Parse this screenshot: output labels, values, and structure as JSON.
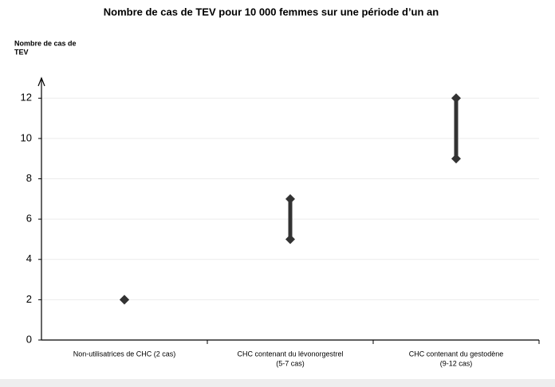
{
  "chart_data": {
    "type": "range",
    "title": "Nombre de cas de TEV pour 10 000 femmes sur une période d’un an",
    "ylabel": [
      "Nombre de cas de",
      "TEV"
    ],
    "categories": [
      [
        "Non-utilisatrices de CHC (2 cas)"
      ],
      [
        "CHC contenant du lévonorgestrel",
        "(5-7 cas)"
      ],
      [
        "CHC contenant du gestodène",
        "(9-12 cas)"
      ]
    ],
    "low": [
      2,
      5,
      9
    ],
    "high": [
      2,
      7,
      12
    ],
    "color": "#333333",
    "ylim": [
      0,
      13
    ],
    "yticks": [
      0,
      2,
      4,
      6,
      8,
      10,
      12
    ],
    "grid": true
  }
}
